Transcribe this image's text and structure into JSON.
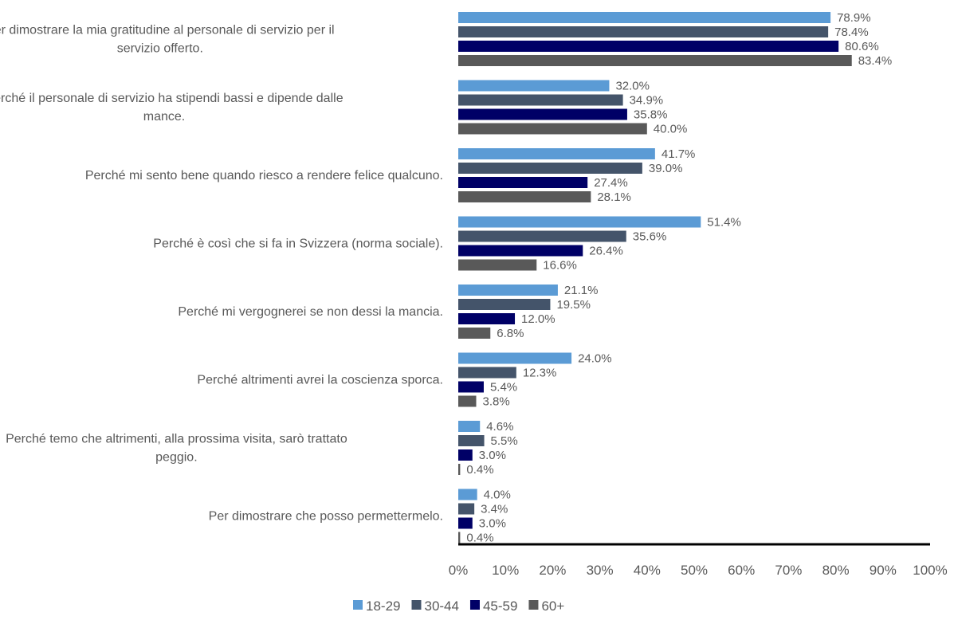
{
  "chart_data": {
    "type": "bar",
    "orientation": "horizontal",
    "categories": [
      [
        "Per dimostrare la mia gratitudine al personale di servizio per il",
        "servizio offerto."
      ],
      [
        "Perché il personale di servizio ha stipendi bassi e dipende dalle",
        "mance."
      ],
      [
        "Perché mi sento bene quando riesco a rendere felice qualcuno."
      ],
      [
        "Perché è così che si fa in Svizzera (norma sociale)."
      ],
      [
        "Perché mi vergognerei se non dessi la mancia."
      ],
      [
        "Perché altrimenti avrei la coscienza sporca."
      ],
      [
        "Perché temo che altrimenti, alla prossima visita, sarò trattato",
        "peggio."
      ],
      [
        "Per dimostrare che posso permettermelo."
      ]
    ],
    "series": [
      {
        "name": "18-29",
        "color": "#5b9bd5",
        "values": [
          78.9,
          32.0,
          41.7,
          51.4,
          21.1,
          24.0,
          4.6,
          4.0
        ],
        "labels": [
          "78.9%",
          "32.0%",
          "41.7%",
          "51.4%",
          "21.1%",
          "24.0%",
          "4.6%",
          "4.0%"
        ]
      },
      {
        "name": "30-44",
        "color": "#44546a",
        "values": [
          78.4,
          34.9,
          39.0,
          35.6,
          19.5,
          12.3,
          5.5,
          3.4
        ],
        "labels": [
          "78.4%",
          "34.9%",
          "39.0%",
          "35.6%",
          "19.5%",
          "12.3%",
          "5.5%",
          "3.4%"
        ]
      },
      {
        "name": "45-59",
        "color": "#000066",
        "values": [
          80.6,
          35.8,
          27.4,
          26.4,
          12.0,
          5.4,
          3.0,
          3.0
        ],
        "labels": [
          "80.6%",
          "35.8%",
          "27.4%",
          "26.4%",
          "12.0%",
          "5.4%",
          "3.0%",
          "3.0%"
        ]
      },
      {
        "name": "60+",
        "color": "#595959",
        "values": [
          83.4,
          40.0,
          28.1,
          16.6,
          6.8,
          3.8,
          0.4,
          0.4
        ],
        "labels": [
          "83.4%",
          "40.0%",
          "28.1%",
          "16.6%",
          "6.8%",
          "3.8%",
          "0.4%",
          "0.4%"
        ]
      }
    ],
    "xlim": [
      0,
      100
    ],
    "ticks": [
      "0%",
      "10%",
      "20%",
      "30%",
      "40%",
      "50%",
      "60%",
      "70%",
      "80%",
      "90%",
      "100%"
    ],
    "grid": false,
    "legend_position": "bottom"
  }
}
